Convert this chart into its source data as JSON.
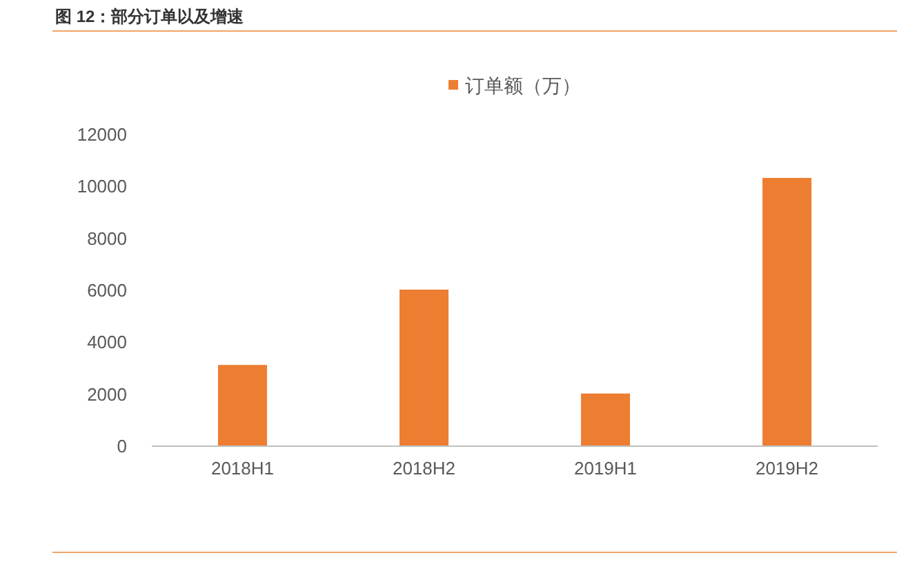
{
  "chart_data": {
    "type": "bar",
    "title": "图 12：部分订单以及增速",
    "categories": [
      "2018H1",
      "2018H2",
      "2019H1",
      "2019H2"
    ],
    "series": [
      {
        "name": "订单额（万）",
        "color": "#ed7d31",
        "values": [
          3100,
          6000,
          2000,
          10300
        ]
      }
    ],
    "ylim": [
      0,
      12000
    ],
    "yticks": [
      0,
      2000,
      4000,
      6000,
      8000,
      10000,
      12000
    ],
    "grid": false,
    "legend": "top"
  }
}
